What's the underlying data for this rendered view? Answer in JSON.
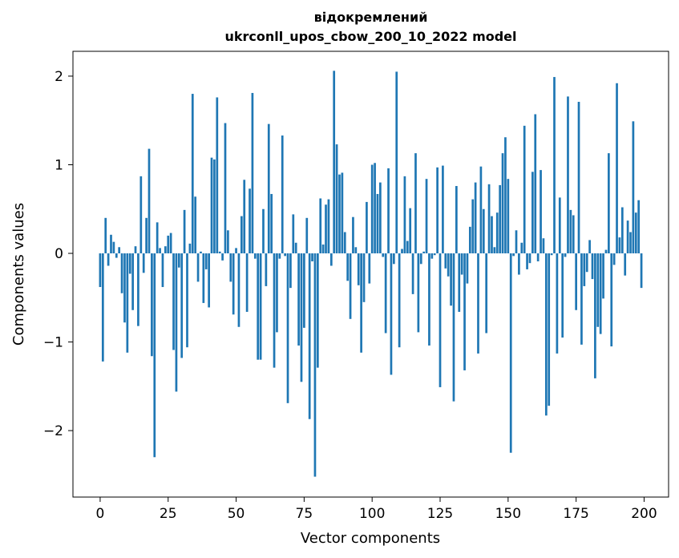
{
  "chart_data": {
    "type": "bar",
    "title_line1": "відокремлений",
    "title_line2": "ukrconll_upos_cbow_200_10_2022 model",
    "xlabel": "Vector components",
    "ylabel": "Components values",
    "xlim": [
      -10,
      209
    ],
    "ylim": [
      -2.75,
      2.28
    ],
    "xticks": [
      0,
      25,
      50,
      75,
      100,
      125,
      150,
      175,
      200
    ],
    "yticks": [
      -2,
      -1,
      0,
      1,
      2
    ],
    "ytick_labels": [
      "−2",
      "−1",
      "0",
      "1",
      "2"
    ],
    "bar_color": "#1f77b4",
    "values": [
      -0.38,
      -1.22,
      0.4,
      -0.14,
      0.21,
      0.13,
      -0.05,
      0.07,
      -0.45,
      -0.78,
      -1.12,
      -0.23,
      -0.64,
      0.08,
      -0.82,
      0.87,
      -0.22,
      0.4,
      1.18,
      -1.16,
      -2.3,
      0.35,
      0.06,
      -0.38,
      0.08,
      0.2,
      0.23,
      -1.09,
      -1.56,
      -0.16,
      -1.18,
      0.49,
      -1.06,
      0.11,
      1.8,
      0.64,
      -0.32,
      0.02,
      -0.56,
      -0.18,
      -0.61,
      1.08,
      1.06,
      1.76,
      0.02,
      -0.08,
      1.47,
      0.26,
      -0.32,
      -0.69,
      0.06,
      -0.83,
      0.42,
      0.83,
      -0.66,
      0.73,
      1.81,
      -0.06,
      -1.2,
      -1.2,
      0.5,
      -0.37,
      1.46,
      0.67,
      -1.29,
      -0.89,
      -0.06,
      1.33,
      -0.03,
      -1.69,
      -0.39,
      0.44,
      0.12,
      -1.04,
      -1.45,
      -0.84,
      0.4,
      -1.87,
      -0.09,
      -2.52,
      -1.29,
      0.62,
      0.1,
      0.55,
      0.61,
      -0.14,
      2.06,
      1.23,
      0.89,
      0.91,
      0.24,
      -0.31,
      -0.74,
      0.41,
      0.07,
      -0.36,
      -1.12,
      -0.55,
      0.58,
      -0.34,
      1.0,
      1.02,
      0.67,
      0.8,
      -0.04,
      -0.9,
      0.96,
      -1.37,
      -0.12,
      2.05,
      -1.06,
      0.05,
      0.87,
      0.14,
      0.51,
      -0.46,
      1.13,
      -0.89,
      -0.12,
      0.02,
      0.84,
      -1.04,
      -0.06,
      -0.02,
      0.97,
      -1.51,
      0.99,
      -0.17,
      -0.26,
      -0.59,
      -1.67,
      0.76,
      -0.66,
      -0.24,
      -1.32,
      -0.34,
      0.3,
      0.61,
      0.8,
      -1.13,
      0.98,
      0.5,
      -0.9,
      0.78,
      0.42,
      0.07,
      0.46,
      0.77,
      1.13,
      1.31,
      0.84,
      -2.25,
      -0.03,
      0.26,
      -0.24,
      0.12,
      1.44,
      -0.18,
      -0.11,
      0.92,
      1.57,
      -0.09,
      0.94,
      0.17,
      -1.83,
      -1.72,
      -0.02,
      1.99,
      -1.13,
      0.63,
      -0.95,
      -0.04,
      1.77,
      0.49,
      0.43,
      -0.64,
      1.71,
      -1.03,
      -0.37,
      -0.21,
      0.15,
      -0.29,
      -1.41,
      -0.83,
      -0.91,
      -0.51,
      0.04,
      1.13,
      -1.05,
      -0.13,
      1.92,
      0.18,
      0.52,
      -0.25,
      0.37,
      0.24,
      1.49,
      0.46,
      0.6,
      -0.39
    ]
  }
}
